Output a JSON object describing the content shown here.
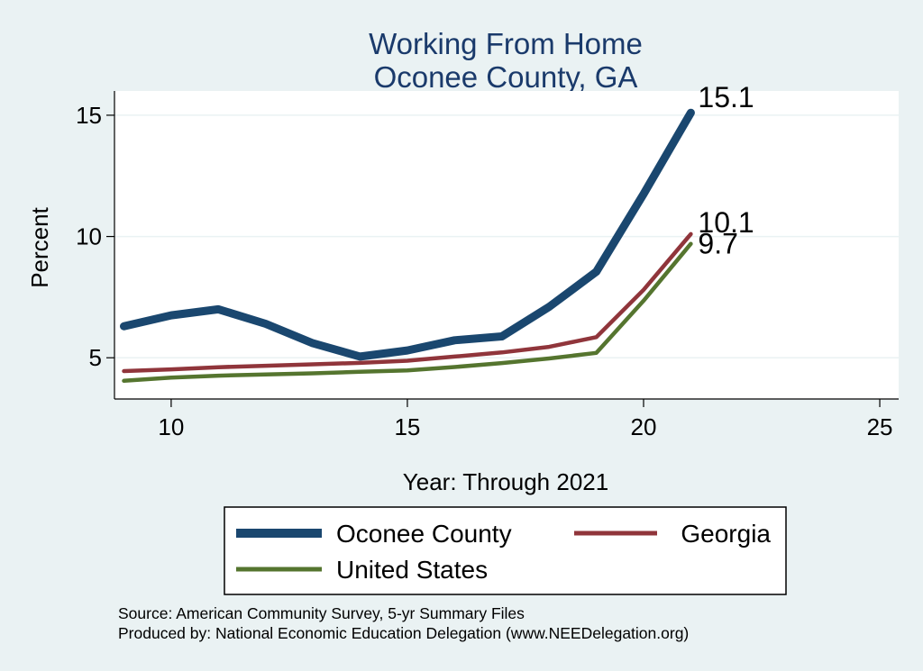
{
  "chart_data": {
    "type": "line",
    "title": "Working From Home",
    "subtitle": "Oconee County, GA",
    "xlabel": "Year: Through 2021",
    "ylabel": "Percent",
    "xlim": [
      8.8,
      25.4
    ],
    "ylim": [
      3.3,
      16
    ],
    "x_ticks": [
      10,
      15,
      20,
      25
    ],
    "y_ticks": [
      5,
      10,
      15
    ],
    "grid": true,
    "legend_placement": "bottom",
    "series": [
      {
        "name": "Oconee County",
        "color": "#1a476f",
        "x": [
          9,
          10,
          11,
          12,
          13,
          14,
          15,
          16,
          17,
          18,
          19,
          20,
          21
        ],
        "y": [
          6.3,
          6.75,
          7.0,
          6.4,
          5.6,
          5.05,
          5.3,
          5.72,
          5.88,
          7.1,
          8.55,
          11.75,
          15.1
        ],
        "end_label": "15.1"
      },
      {
        "name": "Georgia",
        "color": "#90353b",
        "x": [
          9,
          10,
          11,
          12,
          13,
          14,
          15,
          16,
          17,
          18,
          19,
          20,
          21
        ],
        "y": [
          4.45,
          4.52,
          4.61,
          4.67,
          4.73,
          4.79,
          4.88,
          5.05,
          5.22,
          5.45,
          5.85,
          7.8,
          10.1
        ],
        "end_label": "10.1"
      },
      {
        "name": "United States",
        "color": "#55752f",
        "x": [
          9,
          10,
          11,
          12,
          13,
          14,
          15,
          16,
          17,
          18,
          19,
          20,
          21
        ],
        "y": [
          4.05,
          4.18,
          4.26,
          4.31,
          4.36,
          4.42,
          4.48,
          4.62,
          4.78,
          4.97,
          5.2,
          7.35,
          9.7
        ],
        "end_label": "9.7"
      }
    ],
    "notes": [
      "Source: American Community Survey, 5-yr Summary Files",
      "Produced by: National Economic Education Delegation (www.NEEDelegation.org)"
    ]
  }
}
